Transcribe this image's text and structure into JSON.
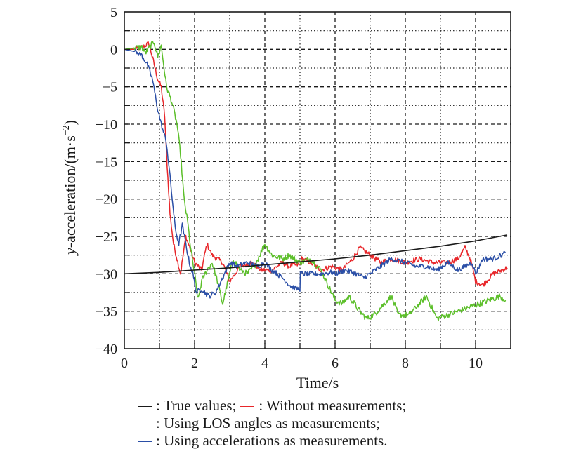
{
  "chart_data": {
    "type": "line",
    "title": "",
    "xlabel": "Time/s",
    "ylabel_main": "y",
    "ylabel_rest": "-acceleration/(m·s",
    "ylabel_sup": "−2",
    "ylabel_close": ")",
    "xlim": [
      0,
      11
    ],
    "ylim": [
      -40,
      5
    ],
    "xticks": [
      0,
      2,
      4,
      6,
      8,
      10
    ],
    "xtick_labels": [
      "0",
      "2",
      "4",
      "6",
      "8",
      "10"
    ],
    "yticks": [
      5,
      0,
      -5,
      -10,
      -15,
      -20,
      -25,
      -30,
      -35,
      -40
    ],
    "ytick_labels": [
      "5",
      "0",
      "−5",
      "−10",
      "−15",
      "−20",
      "−25",
      "−30",
      "−35",
      "−40"
    ],
    "grid": true,
    "legend_position": "bottom",
    "series": [
      {
        "name": "True values",
        "color": "#1a1a1a",
        "noise": 0,
        "x": [
          0,
          1,
          2,
          3,
          4,
          5,
          6,
          7,
          8,
          9,
          10,
          10.9
        ],
        "y": [
          -30,
          -29.8,
          -29.5,
          -29.2,
          -28.8,
          -28.4,
          -28.0,
          -27.5,
          -26.9,
          -26.3,
          -25.6,
          -24.8
        ]
      },
      {
        "name": "Without measurements",
        "color": "#e8262a",
        "noise": 0.7,
        "x": [
          0,
          0.3,
          0.5,
          0.7,
          0.85,
          0.95,
          1.05,
          1.15,
          1.2,
          1.3,
          1.4,
          1.5,
          1.6,
          1.75,
          1.9,
          2.0,
          2.2,
          2.35,
          2.5,
          2.8,
          3.0,
          3.3,
          3.6,
          3.9,
          4.2,
          4.5,
          4.7,
          4.75,
          5.0,
          5.05,
          5.3,
          5.6,
          5.9,
          6.2,
          6.5,
          6.7,
          7.0,
          7.3,
          7.6,
          8.0,
          8.4,
          8.8,
          9.2,
          9.5,
          9.7,
          9.85,
          10.0,
          10.2,
          10.5,
          10.9
        ],
        "y": [
          0,
          0,
          0.3,
          0.8,
          -2.0,
          -4.0,
          -5.0,
          -9.0,
          -14.0,
          -22.0,
          -26.0,
          -28.0,
          -30.0,
          -25.0,
          -27.0,
          -28.5,
          -29.5,
          -26.0,
          -27.5,
          -28.5,
          -31.0,
          -29.0,
          -28.5,
          -29.5,
          -29.5,
          -28.5,
          -29.0,
          -28.8,
          -28.8,
          -28.0,
          -28.5,
          -29.5,
          -29.0,
          -29.5,
          -28.0,
          -26.5,
          -27.5,
          -28.5,
          -28.0,
          -28.5,
          -28.0,
          -28.5,
          -28.5,
          -28.0,
          -26.5,
          -28.0,
          -31.0,
          -31.5,
          -30.0,
          -29.2
        ]
      },
      {
        "name": "Using LOS angles as measurements",
        "color": "#5cbf2a",
        "noise": 0.8,
        "x": [
          0,
          0.3,
          0.5,
          0.6,
          0.75,
          0.85,
          0.95,
          1.05,
          1.2,
          1.35,
          1.5,
          1.6,
          1.7,
          1.8,
          1.9,
          2.0,
          2.1,
          2.2,
          2.35,
          2.5,
          2.65,
          2.8,
          2.95,
          3.1,
          3.3,
          3.5,
          3.7,
          3.85,
          4.0,
          4.2,
          4.5,
          4.7,
          5.0,
          5.3,
          5.6,
          5.85,
          6.0,
          6.2,
          6.4,
          6.7,
          6.9,
          7.1,
          7.4,
          7.6,
          7.8,
          8.1,
          8.4,
          8.6,
          8.9,
          9.2,
          9.5,
          9.8,
          10.1,
          10.4,
          10.7,
          10.85
        ],
        "y": [
          0,
          0.2,
          0.3,
          -0.5,
          0.5,
          1.0,
          -1.0,
          0.5,
          -5.0,
          -7.0,
          -10.0,
          -14.0,
          -20.0,
          -23.0,
          -27.0,
          -30.0,
          -33.5,
          -31.0,
          -29.5,
          -28.5,
          -31.0,
          -34.0,
          -31.0,
          -28.0,
          -29.5,
          -30.0,
          -29.0,
          -27.5,
          -26.0,
          -27.5,
          -28.0,
          -27.5,
          -28.5,
          -28.0,
          -29.5,
          -32.0,
          -33.5,
          -34.0,
          -33.0,
          -35.0,
          -36.0,
          -35.5,
          -34.0,
          -33.0,
          -35.5,
          -35.5,
          -34.0,
          -33.0,
          -36.0,
          -35.5,
          -35.0,
          -34.5,
          -34.0,
          -33.5,
          -33.0,
          -33.5
        ]
      },
      {
        "name": "Using accelerations as measurements",
        "color": "#2a4ea6",
        "noise": 0.7,
        "x": [
          0,
          0.3,
          0.5,
          0.65,
          0.8,
          0.95,
          1.05,
          1.2,
          1.3,
          1.45,
          1.55,
          1.65,
          1.75,
          1.85,
          1.95,
          2.05,
          2.2,
          2.4,
          2.6,
          2.8,
          3.0,
          3.2,
          3.5,
          3.8,
          4.0,
          4.2,
          4.5,
          4.7,
          4.9,
          5.0,
          5.01,
          5.3,
          5.6,
          5.9,
          6.0,
          6.3,
          6.6,
          6.8,
          7.0,
          7.3,
          7.6,
          8.0,
          8.3,
          8.6,
          8.9,
          9.2,
          9.5,
          9.7,
          9.9,
          10.0,
          10.2,
          10.5,
          10.85
        ],
        "y": [
          0,
          -0.3,
          -0.8,
          -2.0,
          -4.0,
          -8.0,
          -10.0,
          -12.5,
          -17.0,
          -24.0,
          -26.0,
          -23.5,
          -26.0,
          -28.5,
          -30.0,
          -32.5,
          -32.0,
          -33.0,
          -32.5,
          -30.5,
          -28.5,
          -29.0,
          -28.5,
          -29.0,
          -28.5,
          -29.5,
          -30.5,
          -31.5,
          -32.0,
          -32.0,
          -30.0,
          -30.0,
          -30.0,
          -29.8,
          -30.0,
          -29.5,
          -30.0,
          -30.5,
          -30.0,
          -29.0,
          -28.0,
          -28.5,
          -29.0,
          -29.0,
          -29.5,
          -28.5,
          -29.5,
          -29.0,
          -28.5,
          -30.0,
          -28.0,
          -28.0,
          -27.2
        ]
      }
    ]
  },
  "legend": {
    "rows": [
      [
        {
          "color": "#1a1a1a",
          "label": ": True values;"
        },
        {
          "color": "#e8262a",
          "label": ": Without measurements;"
        }
      ],
      [
        {
          "color": "#5cbf2a",
          "label": ": Using LOS angles as measurements;"
        }
      ],
      [
        {
          "color": "#2a4ea6",
          "label": ": Using accelerations as measurements."
        }
      ]
    ]
  }
}
